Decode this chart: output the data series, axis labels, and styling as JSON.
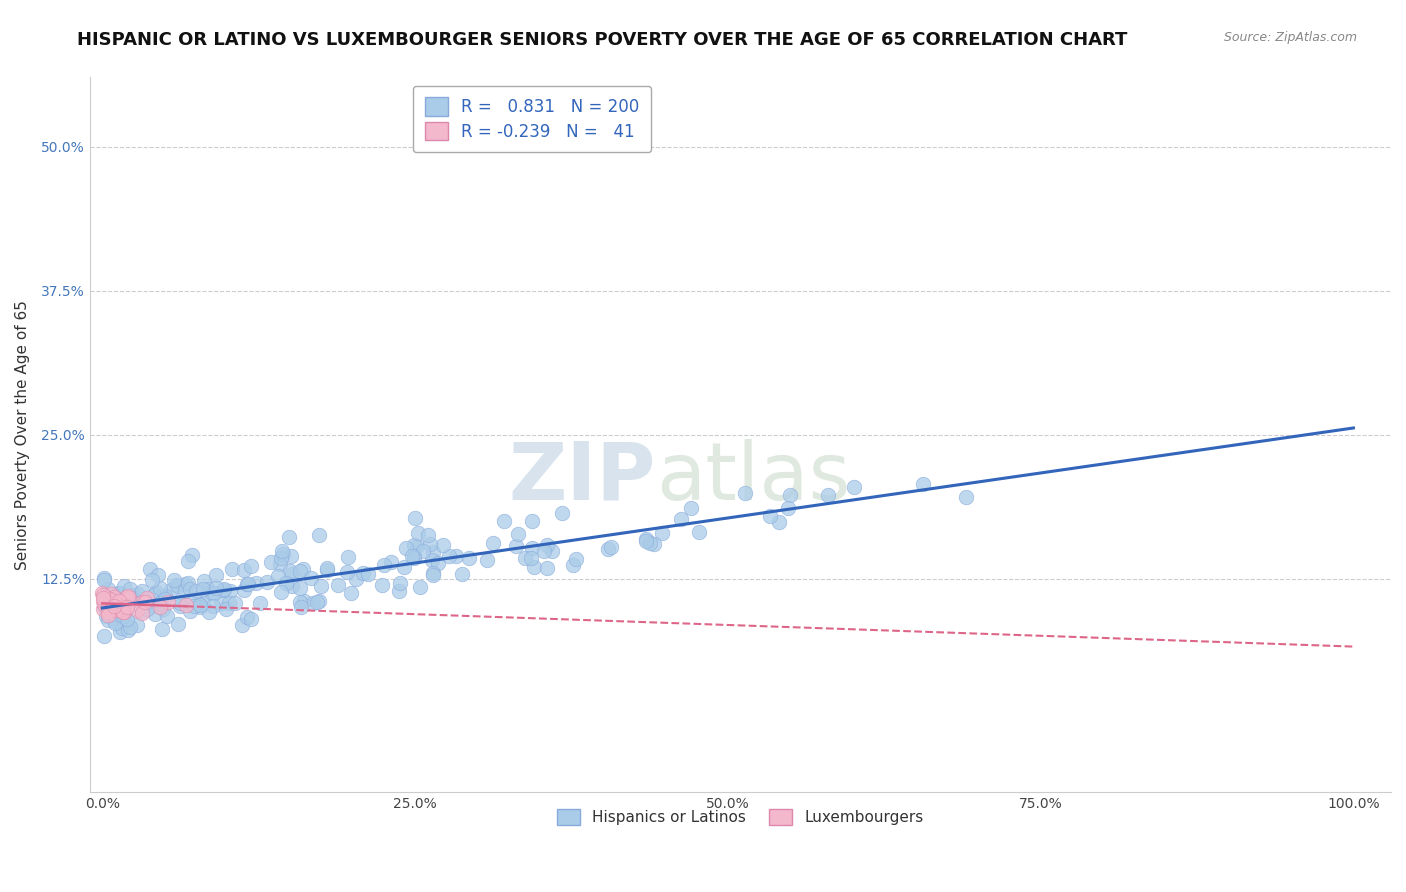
{
  "title": "HISPANIC OR LATINO VS LUXEMBOURGER SENIORS POVERTY OVER THE AGE OF 65 CORRELATION CHART",
  "source": "Source: ZipAtlas.com",
  "xlabel": "",
  "ylabel": "Seniors Poverty Over the Age of 65",
  "xlim": [
    -0.01,
    1.03
  ],
  "ylim": [
    -0.06,
    0.56
  ],
  "xticks": [
    0.0,
    0.25,
    0.5,
    0.75,
    1.0
  ],
  "xtick_labels": [
    "0.0%",
    "25.0%",
    "50.0%",
    "75.0%",
    "100.0%"
  ],
  "yticks": [
    0.125,
    0.25,
    0.375,
    0.5
  ],
  "ytick_labels": [
    "12.5%",
    "25.0%",
    "37.5%",
    "50.0%"
  ],
  "blue_R": 0.831,
  "blue_N": 200,
  "pink_R": -0.239,
  "pink_N": 41,
  "blue_color": "#aacce8",
  "blue_edge": "#88aadd",
  "blue_line_color": "#3366bb",
  "pink_color": "#f4b8cc",
  "pink_edge": "#dd88aa",
  "pink_line_color": "#dd6688",
  "watermark_zip": "ZIP",
  "watermark_atlas": "atlas",
  "legend_label_blue": "Hispanics or Latinos",
  "legend_label_pink": "Luxembourgers",
  "background_color": "#ffffff",
  "grid_color": "#cccccc",
  "title_fontsize": 13,
  "axis_label_fontsize": 11,
  "tick_fontsize": 10,
  "legend_fontsize": 11,
  "source_fontsize": 9
}
